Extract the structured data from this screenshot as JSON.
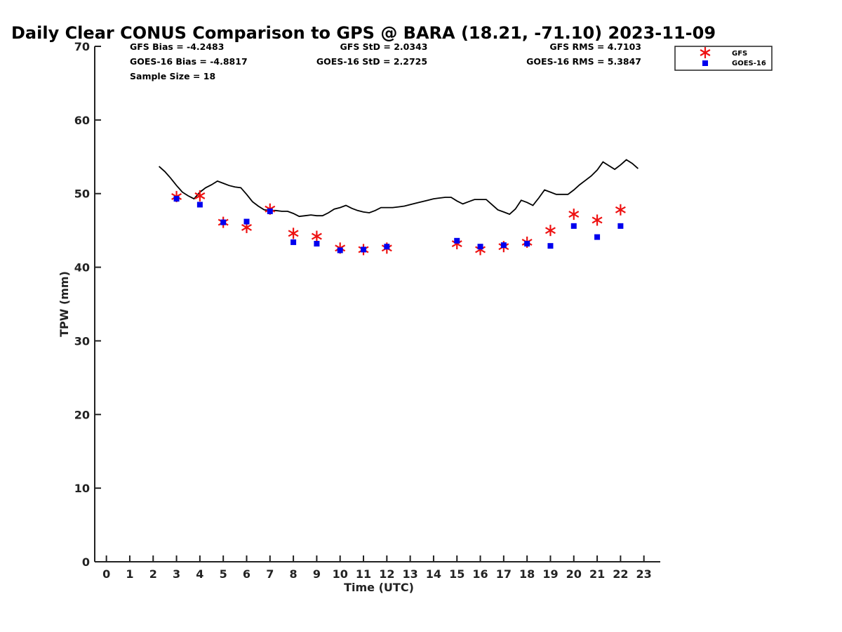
{
  "chart_data": {
    "type": "scatter",
    "title": "Daily Clear CONUS Comparison to GPS @ BARA (18.21, -71.10) 2023-11-09",
    "xlabel": "Time (UTC)",
    "ylabel": "TPW (mm)",
    "xlim": [
      -0.5,
      23.7
    ],
    "ylim": [
      0,
      70
    ],
    "x_ticks": [
      "0",
      "1",
      "2",
      "3",
      "4",
      "5",
      "6",
      "7",
      "8",
      "9",
      "10",
      "11",
      "12",
      "13",
      "14",
      "15",
      "16",
      "17",
      "18",
      "19",
      "20",
      "21",
      "22",
      "23"
    ],
    "y_ticks": [
      "0",
      "10",
      "20",
      "30",
      "40",
      "50",
      "60",
      "70"
    ],
    "legend_position": "top-right",
    "stats": {
      "gfs_bias": "GFS Bias = -4.2483",
      "goes_bias": "GOES-16 Bias = -4.8817",
      "sample_size": "Sample Size = 18",
      "gfs_std": "GFS StD = 2.0343",
      "goes_std": "GOES-16 StD = 2.2725",
      "gfs_rms": "GFS RMS = 4.7103",
      "goes_rms": "GOES-16 RMS = 5.3847"
    },
    "series": [
      {
        "name": "GFS",
        "marker": "asterisk",
        "color": "#ee1111",
        "x": [
          3,
          4,
          5,
          6,
          7,
          8,
          9,
          10,
          11,
          12,
          15,
          16,
          17,
          18,
          19,
          20,
          21,
          22
        ],
        "y": [
          49.6,
          49.7,
          46.1,
          45.4,
          47.9,
          44.6,
          44.2,
          42.6,
          42.4,
          42.6,
          43.2,
          42.4,
          42.8,
          43.4,
          45.0,
          47.2,
          46.4,
          47.8
        ]
      },
      {
        "name": "GOES-16",
        "marker": "square",
        "color": "#0000ee",
        "x": [
          3,
          4,
          5,
          6,
          7,
          8,
          9,
          10,
          11,
          12,
          15,
          16,
          17,
          18,
          19,
          20,
          21,
          22
        ],
        "y": [
          49.3,
          48.5,
          46.1,
          46.2,
          47.6,
          43.4,
          43.2,
          42.3,
          42.4,
          42.8,
          43.6,
          42.8,
          43.0,
          43.2,
          42.9,
          45.6,
          44.1,
          45.6
        ]
      },
      {
        "marker": "line",
        "color": "#000000",
        "x": [
          2.25,
          2.5,
          2.75,
          3.0,
          3.25,
          3.5,
          3.75,
          4.0,
          4.25,
          4.5,
          4.75,
          5.0,
          5.25,
          5.5,
          5.75,
          6.0,
          6.25,
          6.5,
          6.75,
          7.0,
          7.25,
          7.5,
          7.75,
          8.0,
          8.25,
          8.5,
          8.75,
          9.0,
          9.25,
          9.5,
          9.75,
          10.0,
          10.25,
          10.5,
          10.75,
          11.0,
          11.25,
          11.5,
          11.75,
          12.0,
          12.25,
          12.5,
          12.75,
          13.0,
          13.25,
          13.5,
          13.75,
          14.0,
          14.25,
          14.5,
          14.75,
          15.0,
          15.25,
          15.5,
          15.75,
          16.0,
          16.25,
          16.5,
          16.75,
          17.0,
          17.25,
          17.5,
          17.75,
          18.0,
          18.25,
          18.5,
          18.75,
          19.0,
          19.25,
          19.5,
          19.75,
          20.0,
          20.25,
          20.5,
          20.75,
          21.0,
          21.25,
          21.5,
          21.75,
          22.0,
          22.25,
          22.5,
          22.75
        ],
        "y": [
          53.7,
          53.0,
          52.1,
          51.1,
          50.2,
          49.7,
          49.3,
          50.2,
          50.8,
          51.2,
          51.7,
          51.4,
          51.1,
          50.9,
          50.8,
          49.9,
          48.9,
          48.3,
          47.8,
          47.7,
          47.7,
          47.6,
          47.6,
          47.3,
          46.9,
          47.0,
          47.1,
          47.0,
          47.0,
          47.4,
          47.9,
          48.1,
          48.4,
          48.0,
          47.7,
          47.5,
          47.4,
          47.7,
          48.1,
          48.1,
          48.1,
          48.2,
          48.3,
          48.5,
          48.7,
          48.9,
          49.1,
          49.3,
          49.4,
          49.5,
          49.5,
          49.0,
          48.6,
          48.9,
          49.2,
          49.2,
          49.2,
          48.5,
          47.8,
          47.5,
          47.2,
          47.9,
          49.1,
          48.8,
          48.4,
          49.4,
          50.5,
          50.2,
          49.9,
          49.9,
          49.9,
          50.5,
          51.2,
          51.8,
          52.4,
          53.2,
          54.3,
          53.8,
          53.3,
          53.9,
          54.6,
          54.1,
          53.4
        ]
      }
    ]
  }
}
